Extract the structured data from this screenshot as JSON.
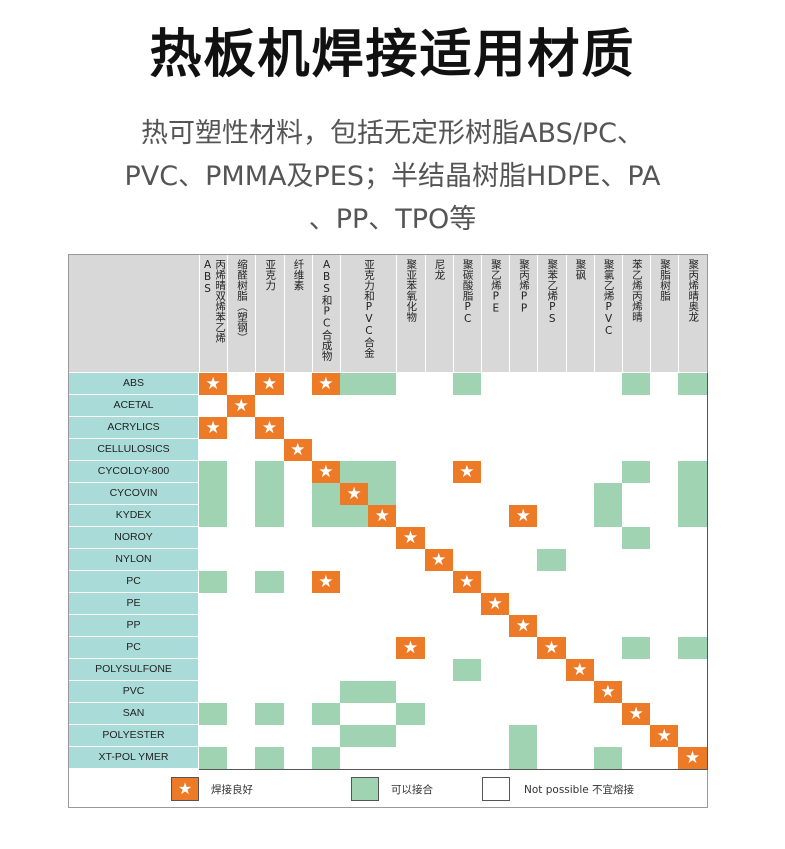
{
  "title": "热板机焊接适用材质",
  "subtitle": [
    "热可塑性材料，包括无定形树脂ABS/PC、",
    "PVC、PMMA及PES；半结晶树脂HDPE、PA",
    "、PP、TPO等"
  ],
  "colors": {
    "good": "#ec7a26",
    "possible": "#9fd3b2",
    "row_label": "#a9dcd8",
    "header": "#d8d8d8"
  },
  "columns": [
    "丙烯晴双烯苯乙烯ABS",
    "缩醛树脂（塑钢）",
    "亚克力",
    "纤维素",
    "ABS和PC合成物",
    "亚克力和PVC合金",
    "聚亚苯氧化物",
    "尼龙",
    "聚碳酸脂PC",
    "聚乙烯PE",
    "聚丙烯PP",
    "聚苯乙烯PS",
    "聚砜",
    "聚氯乙烯PVC",
    "苯乙烯丙烯晴",
    "聚脂树脂",
    "聚丙烯晴奥龙"
  ],
  "column_spans": [
    1,
    1,
    1,
    1,
    1,
    2,
    1,
    1,
    1,
    1,
    1,
    1,
    1,
    1,
    1,
    1,
    1
  ],
  "rows": [
    {
      "label": "ABS",
      "cells": "S.S.SGG..G.....G.G"
    },
    {
      "label": "ACETAL",
      "cells": ".S................"
    },
    {
      "label": "ACRYLICS",
      "cells": "S.S..............."
    },
    {
      "label": "CELLULOSICS",
      "cells": "...S.............."
    },
    {
      "label": "CYCOLOY-800",
      "cells": "G.G.SGG..S.....G.G"
    },
    {
      "label": "CYCOVIN",
      "cells": "G.G.GSG.......G..G"
    },
    {
      "label": "KYDEX",
      "cells": "G.G.GGS....S..G..G"
    },
    {
      "label": "NOROY",
      "cells": ".......S.......G.."
    },
    {
      "label": "NYLON",
      "cells": "........S...G....."
    },
    {
      "label": "PC",
      "cells": "G.G.S....S........"
    },
    {
      "label": "PE",
      "cells": "..........S......."
    },
    {
      "label": "PP",
      "cells": "...........S......"
    },
    {
      "label": "PC",
      "cells": ".......S....S..G.G"
    },
    {
      "label": "POLYSULFONE",
      "cells": ".........G...S...."
    },
    {
      "label": "PVC",
      "cells": ".....GG.......S..."
    },
    {
      "label": "SAN",
      "cells": "G.G.G..G.......S.."
    },
    {
      "label": "POLYESTER",
      "cells": ".....GG....G....S."
    },
    {
      "label": "XT-POL YMER",
      "cells": "G.G.G......G..G..S"
    }
  ],
  "legend": {
    "good": "焊接良好",
    "possible": "可以接合",
    "not_possible": "Not possible 不宜熔接"
  },
  "icons": {
    "good": "star-icon"
  }
}
